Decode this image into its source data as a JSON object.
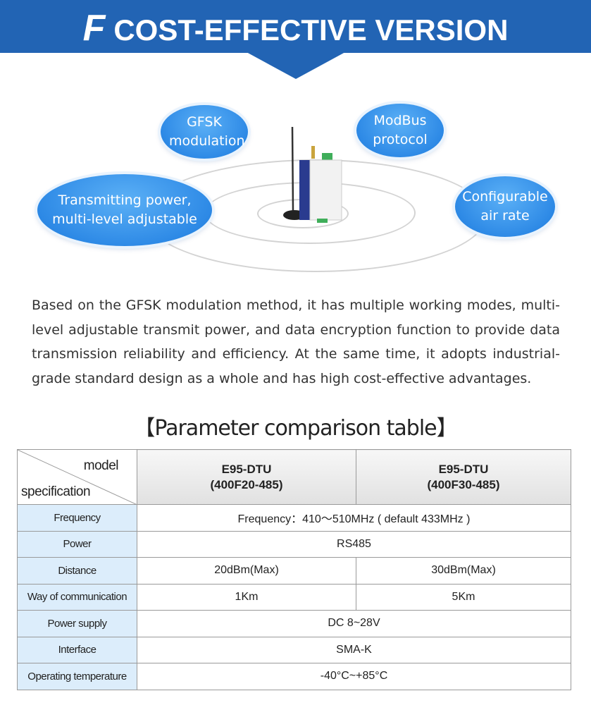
{
  "banner": {
    "letter": "F",
    "title": "COST-EFFECTIVE VERSION",
    "color": "#2264b4"
  },
  "features": [
    {
      "label": "GFSK modulation"
    },
    {
      "label": "ModBus protocol"
    },
    {
      "label": "Transmitting power, multi-level adjustable"
    },
    {
      "label": "Configurable air rate"
    }
  ],
  "description": "Based on the GFSK modulation method, it has multiple working modes, multi-level adjustable transmit power, and data encryption function to provide data transmission reliability and efficiency. At the same time, it adopts industrial-grade standard design as a whole and has high cost-effective advantages.",
  "table": {
    "title": "【Parameter comparison table】",
    "corner_top": "model",
    "corner_bottom": "specification",
    "models": [
      {
        "name": "E95-DTU",
        "variant": "(400F20-485)"
      },
      {
        "name": "E95-DTU",
        "variant": "(400F30-485)"
      }
    ],
    "rows": [
      {
        "label": "Frequency",
        "value": "Frequency：410～510MHz ( default  433MHz )"
      },
      {
        "label": "Power",
        "value": "RS485"
      },
      {
        "label": "Distance",
        "values": [
          "20dBm(Max)",
          "30dBm(Max)"
        ]
      },
      {
        "label": "Way of communication",
        "values": [
          "1Km",
          "5Km"
        ]
      },
      {
        "label": "Power supply",
        "value": "DC 8~28V"
      },
      {
        "label": "Interface",
        "value": "SMA-K"
      },
      {
        "label": "Operating temperature",
        "value": "-40°C~+85°C"
      }
    ]
  }
}
